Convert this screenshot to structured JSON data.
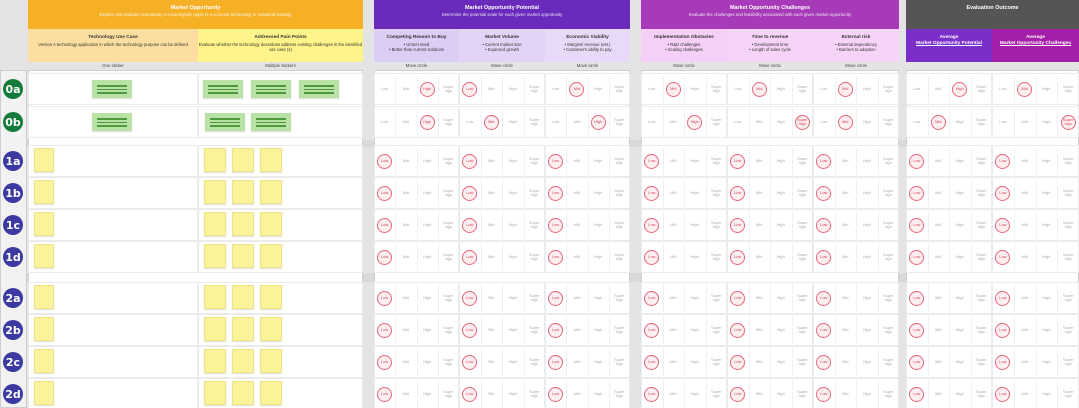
{
  "groups": [
    {
      "id": "opportunity",
      "title": "Market Opportunity",
      "subtitle": "Explore and evaluate opportunity in meaningfully apply to a concrete technology or industrial strategy",
      "color": "#f5b026"
    },
    {
      "id": "potential",
      "title": "Market Opportunity Potential",
      "subtitle": "Determine the potential scale for each given market opportunity",
      "color": "#6a2bbd"
    },
    {
      "id": "challenges",
      "title": "Market Opportunity Challenges",
      "subtitle": "Evaluate the challenges and feasibility associated with each given market opportunity",
      "color": "#a63ab8"
    },
    {
      "id": "outcome",
      "title": "Evaluation Outcome",
      "subtitle": "",
      "color": "#555555"
    }
  ],
  "columns": {
    "use_case": {
      "title": "Technology Use Case",
      "desc": "Version A technology application in which the technology purpose can be defined",
      "instruction": "One sticker"
    },
    "pain_points": {
      "title": "Addressed Pain Points",
      "desc": "Evaluate whether the technology does/does address existing challenges in the identified use case (s)",
      "instruction": "Multiple stickers"
    },
    "criteria": [
      {
        "title": "Competing Reason to Buy",
        "desc": "• Unmet need\n• Better than current solutions",
        "instruction": "Move circle"
      },
      {
        "title": "Market Volume",
        "desc": "• Current market size\n• Expected growth",
        "instruction": "Move circle"
      },
      {
        "title": "Economic Viability",
        "desc": "• Margins/ revenue (est.)\n• Customer's ability to pay",
        "instruction": "Move circle"
      },
      {
        "title": "Implementation Obstacles",
        "desc": "• R&D challenges\n• Scaling challenges",
        "instruction": "Move circle"
      },
      {
        "title": "Time to revenue",
        "desc": "• Development time\n• Length of sales cycle",
        "instruction": "Move circle"
      },
      {
        "title": "External risk",
        "desc": "• External dependency\n• Barriers to adoption",
        "instruction": "Move circle"
      }
    ],
    "outcome": [
      {
        "title": "Average",
        "subtitle": "Market Opportunity Potential"
      },
      {
        "title": "Average",
        "subtitle": "Market Opportunity Challenges"
      }
    ]
  },
  "scale": [
    "Low",
    "Mid",
    "High",
    "Super high"
  ],
  "rows": [
    {
      "id": "0a",
      "stickies": 3,
      "ratings": [
        2,
        0,
        1,
        1,
        1,
        1,
        2,
        1
      ],
      "filled": true
    },
    {
      "id": "0b",
      "stickies": 2,
      "ratings": [
        2,
        1,
        2,
        2,
        3,
        1,
        1,
        3
      ],
      "filled": true
    },
    {
      "id": "1a",
      "stickies": 3,
      "ratings": [
        0,
        0,
        0,
        0,
        0,
        0,
        0,
        0
      ],
      "filled": false
    },
    {
      "id": "1b",
      "stickies": 3,
      "ratings": [
        0,
        0,
        0,
        0,
        0,
        0,
        0,
        0
      ],
      "filled": false
    },
    {
      "id": "1c",
      "stickies": 3,
      "ratings": [
        0,
        0,
        0,
        0,
        0,
        0,
        0,
        0
      ],
      "filled": false
    },
    {
      "id": "1d",
      "stickies": 3,
      "ratings": [
        0,
        0,
        0,
        0,
        0,
        0,
        0,
        0
      ],
      "filled": false
    },
    {
      "id": "2a",
      "stickies": 3,
      "ratings": [
        0,
        0,
        0,
        0,
        0,
        0,
        0,
        0
      ],
      "filled": false
    },
    {
      "id": "2b",
      "stickies": 3,
      "ratings": [
        0,
        0,
        0,
        0,
        0,
        0,
        0,
        0
      ],
      "filled": false
    },
    {
      "id": "2c",
      "stickies": 3,
      "ratings": [
        0,
        0,
        0,
        0,
        0,
        0,
        0,
        0
      ],
      "filled": false
    },
    {
      "id": "2d",
      "stickies": 3,
      "ratings": [
        0,
        0,
        0,
        0,
        0,
        0,
        0,
        0
      ],
      "filled": false
    }
  ]
}
